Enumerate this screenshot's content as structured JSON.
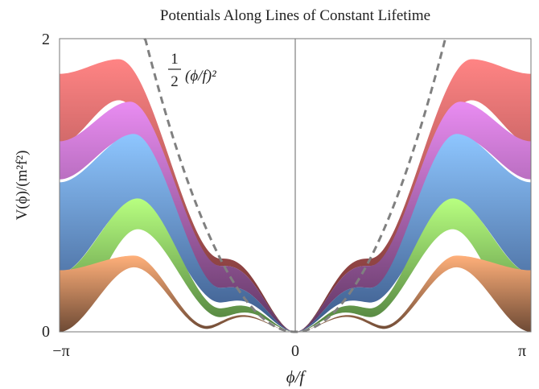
{
  "chart_data": {
    "type": "area",
    "title": "Potentials Along Lines of Constant Lifetime",
    "xlabel": "ϕ/f",
    "ylabel": "V(ϕ)/(m²f²)",
    "xlim": [
      -3.14159,
      3.14159
    ],
    "ylim": [
      0,
      2
    ],
    "x_ticks": [
      "−π",
      "0",
      "π"
    ],
    "y_ticks": [
      "0",
      "2"
    ],
    "grid": false,
    "reference_curve": {
      "label_fraction": "1/2",
      "label_expr": "(ϕ/f)²",
      "formula": "0.5*x^2",
      "style": "dashed",
      "color": "#808080"
    },
    "bands": [
      {
        "color_light": "#ffb07a",
        "color_dark": "#6e4a35",
        "upper": {
          "peak_x": 2.15,
          "peak_y": 0.52,
          "edge_y": 0.42,
          "dip_x": 1.18,
          "dip_y": 0.04
        },
        "lower": {
          "peak_x": 2.15,
          "peak_y": 0.44,
          "edge_y": 0.0,
          "dip_x": 1.18,
          "dip_y": 0.02
        }
      },
      {
        "color_light": "#b8ff80",
        "color_dark": "#4e7d3d",
        "upper": {
          "peak_x": 2.1,
          "peak_y": 0.91,
          "edge_y": 0.4,
          "dip_x": 1.0,
          "dip_y": 0.16
        },
        "lower": {
          "peak_x": 2.1,
          "peak_y": 0.7,
          "edge_y": 0.0,
          "dip_x": 1.0,
          "dip_y": 0.1
        }
      },
      {
        "color_light": "#8ec6ff",
        "color_dark": "#3a5888",
        "upper": {
          "peak_x": 2.15,
          "peak_y": 1.35,
          "edge_y": 1.02,
          "dip_x": 1.0,
          "dip_y": 0.3
        },
        "lower": {
          "peak_x": 2.15,
          "peak_y": 0.88,
          "edge_y": 0.4,
          "dip_x": 1.0,
          "dip_y": 0.2
        }
      },
      {
        "color_light": "#e98cf2",
        "color_dark": "#5e3560",
        "upper": {
          "peak_x": 2.2,
          "peak_y": 1.57,
          "edge_y": 1.3,
          "dip_x": 1.0,
          "dip_y": 0.45
        },
        "lower": {
          "peak_x": 2.2,
          "peak_y": 1.33,
          "edge_y": 1.04,
          "dip_x": 1.0,
          "dip_y": 0.3
        }
      },
      {
        "color_light": "#ff8484",
        "color_dark": "#6a2e2e",
        "upper": {
          "peak_x": 2.35,
          "peak_y": 1.86,
          "edge_y": 1.76,
          "dip_x": 1.0,
          "dip_y": 0.5
        },
        "lower": {
          "peak_x": 2.35,
          "peak_y": 1.58,
          "edge_y": 1.28,
          "dip_x": 1.0,
          "dip_y": 0.45
        }
      }
    ]
  }
}
